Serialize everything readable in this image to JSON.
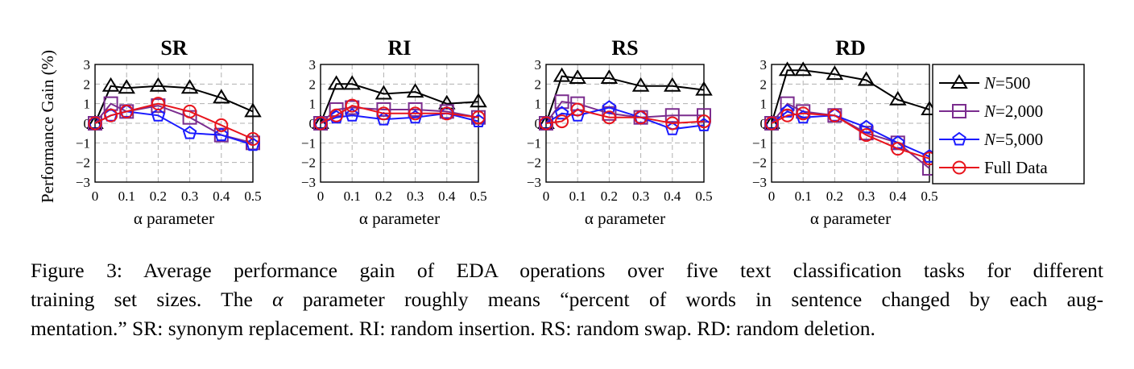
{
  "chart_data": [
    {
      "type": "line",
      "title": "SR",
      "x": [
        0,
        0.05,
        0.1,
        0.2,
        0.3,
        0.4,
        0.5
      ],
      "xticks": [
        "0",
        "0.1",
        "0.2",
        "0.3",
        "0.4",
        "0.5"
      ],
      "yticks": [
        "−3",
        "−2",
        "−1",
        "0",
        "1",
        "2",
        "3"
      ],
      "xlim": [
        0,
        0.5
      ],
      "ylim": [
        -3,
        3
      ],
      "xlabel": "α parameter",
      "ylabel": "Performance Gain (%)",
      "grid": true,
      "series": [
        {
          "name": "N=500",
          "values": [
            0,
            1.9,
            1.8,
            1.9,
            1.8,
            1.3,
            0.6
          ]
        },
        {
          "name": "N=2,000",
          "values": [
            0,
            1.0,
            0.6,
            0.9,
            0.3,
            -0.6,
            -1.0
          ]
        },
        {
          "name": "N=5,000",
          "values": [
            0,
            0.4,
            0.6,
            0.4,
            -0.5,
            -0.6,
            -1.1
          ]
        },
        {
          "name": "Full Data",
          "values": [
            0,
            0.4,
            0.6,
            1.0,
            0.6,
            -0.1,
            -0.8
          ]
        }
      ]
    },
    {
      "type": "line",
      "title": "RI",
      "x": [
        0,
        0.05,
        0.1,
        0.2,
        0.3,
        0.4,
        0.5
      ],
      "xticks": [
        "0",
        "0.1",
        "0.2",
        "0.3",
        "0.4",
        "0.5"
      ],
      "yticks": [
        "−3",
        "−2",
        "−1",
        "0",
        "1",
        "2",
        "3"
      ],
      "xlim": [
        0,
        0.5
      ],
      "ylim": [
        -3,
        3
      ],
      "xlabel": "α parameter",
      "grid": true,
      "series": [
        {
          "name": "N=500",
          "values": [
            0,
            2.0,
            2.0,
            1.5,
            1.6,
            1.0,
            1.1
          ]
        },
        {
          "name": "N=2,000",
          "values": [
            0,
            0.7,
            0.8,
            0.7,
            0.7,
            0.6,
            0.3
          ]
        },
        {
          "name": "N=5,000",
          "values": [
            0,
            0.3,
            0.4,
            0.2,
            0.3,
            0.5,
            0.1
          ]
        },
        {
          "name": "Full Data",
          "values": [
            0,
            0.4,
            0.9,
            0.5,
            0.5,
            0.5,
            0.3
          ]
        }
      ]
    },
    {
      "type": "line",
      "title": "RS",
      "x": [
        0,
        0.05,
        0.1,
        0.2,
        0.3,
        0.4,
        0.5
      ],
      "xticks": [
        "0",
        "0.1",
        "0.2",
        "0.3",
        "0.4",
        "0.5"
      ],
      "yticks": [
        "−3",
        "−2",
        "−1",
        "0",
        "1",
        "2",
        "3"
      ],
      "xlim": [
        0,
        0.5
      ],
      "ylim": [
        -3,
        3
      ],
      "xlabel": "α parameter",
      "grid": true,
      "series": [
        {
          "name": "N=500",
          "values": [
            0,
            2.4,
            2.3,
            2.3,
            1.9,
            1.9,
            1.7
          ]
        },
        {
          "name": "N=2,000",
          "values": [
            0,
            1.1,
            1.0,
            0.5,
            0.3,
            0.4,
            0.4
          ]
        },
        {
          "name": "N=5,000",
          "values": [
            0,
            0.5,
            0.4,
            0.8,
            0.3,
            -0.3,
            -0.1
          ]
        },
        {
          "name": "Full Data",
          "values": [
            0,
            0.1,
            0.7,
            0.3,
            0.3,
            0.0,
            0.1
          ]
        }
      ]
    },
    {
      "type": "line",
      "title": "RD",
      "x": [
        0,
        0.05,
        0.1,
        0.2,
        0.3,
        0.4,
        0.5
      ],
      "xticks": [
        "0",
        "0.1",
        "0.2",
        "0.3",
        "0.4",
        "0.5"
      ],
      "yticks": [
        "−3",
        "−2",
        "−1",
        "0",
        "1",
        "2",
        "3"
      ],
      "xlim": [
        0,
        0.5
      ],
      "ylim": [
        -3,
        3
      ],
      "xlabel": "α parameter",
      "grid": true,
      "series": [
        {
          "name": "N=500",
          "values": [
            0,
            2.7,
            2.7,
            2.5,
            2.2,
            1.2,
            0.7
          ]
        },
        {
          "name": "N=2,000",
          "values": [
            0,
            1.0,
            0.6,
            0.4,
            -0.5,
            -1.0,
            -2.3
          ]
        },
        {
          "name": "N=5,000",
          "values": [
            0,
            0.6,
            0.3,
            0.4,
            -0.2,
            -1.0,
            -1.7
          ]
        },
        {
          "name": "Full Data",
          "values": [
            0,
            0.4,
            0.5,
            0.4,
            -0.6,
            -1.3,
            -1.8
          ]
        }
      ]
    }
  ],
  "legend": {
    "placement": "right",
    "entries": [
      {
        "var": "N",
        "rest": "=500"
      },
      {
        "var": "N",
        "rest": "=2,000"
      },
      {
        "var": "N",
        "rest": "=5,000"
      },
      {
        "var": "",
        "rest": "Full Data"
      }
    ]
  },
  "series_style": [
    {
      "color": "#000000",
      "marker": "triangle"
    },
    {
      "color": "#7b2d8e",
      "marker": "square"
    },
    {
      "color": "#1a1aff",
      "marker": "pentagon"
    },
    {
      "color": "#e8141c",
      "marker": "circle"
    }
  ],
  "caption": {
    "line1": "Figure 3: Average performance gain of EDA operations over five text classification tasks for different",
    "line2_pre": "training set sizes. The ",
    "line2_alpha": "α",
    "line2_post": " parameter roughly means “percent of words in sentence changed by each aug-",
    "line3": "mentation.” SR: synonym replacement. RI: random insertion. RS: random swap. RD: random deletion."
  }
}
